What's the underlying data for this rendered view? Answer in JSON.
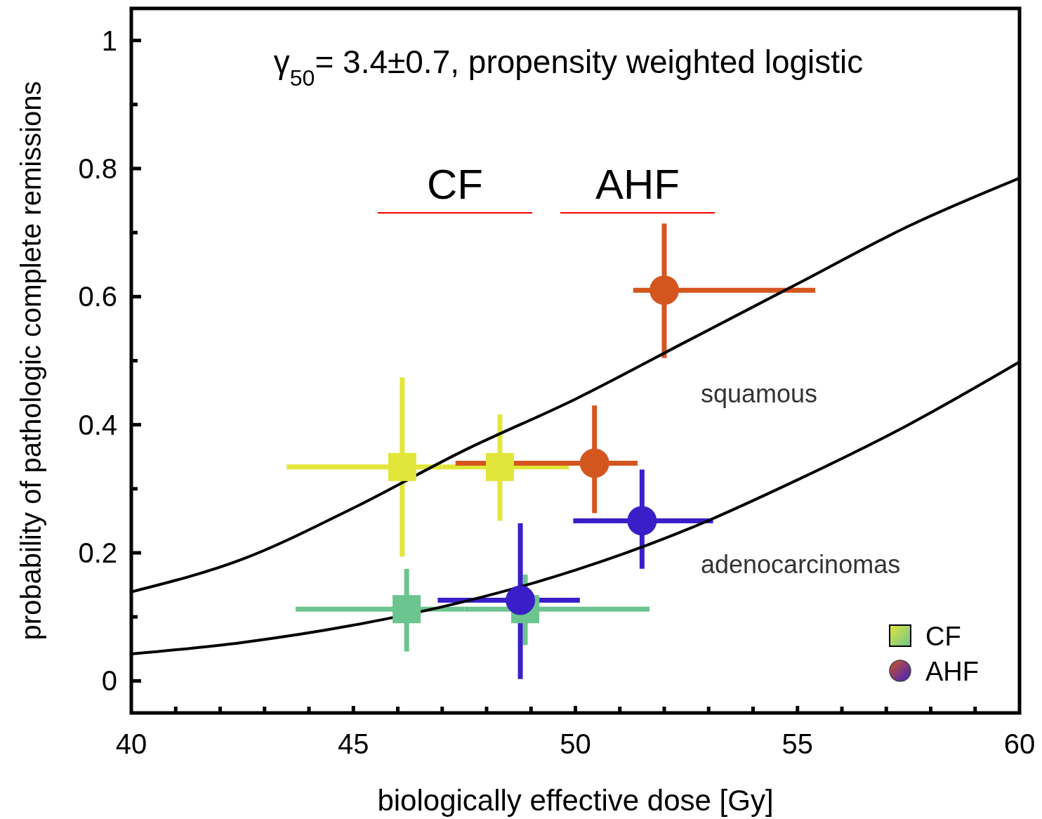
{
  "chart_data": {
    "type": "scatter",
    "title": "γ$_{50}$= 3.4±0.7, propensity weighted logistic",
    "xlabel": "biologically effective dose [Gy]",
    "ylabel": "probability of pathologic complete remissions",
    "xlim": [
      40,
      60
    ],
    "ylim": [
      -0.05,
      1.05
    ],
    "xticks": [
      40,
      {
        "value": 41,
        "label": null
      },
      {
        "value": 42,
        "label": null
      },
      {
        "value": 43,
        "label": null
      },
      {
        "value": 44,
        "label": null
      },
      45,
      {
        "value": 46,
        "label": null
      },
      {
        "value": 47,
        "label": null
      },
      {
        "value": 48,
        "label": null
      },
      {
        "value": 49,
        "label": null
      },
      50,
      {
        "value": 51,
        "label": null
      },
      {
        "value": 52,
        "label": null
      },
      {
        "value": 53,
        "label": null
      },
      {
        "value": 54,
        "label": null
      },
      55,
      {
        "value": 56,
        "label": null
      },
      {
        "value": 57,
        "label": null
      },
      {
        "value": 58,
        "label": null
      },
      {
        "value": 59,
        "label": null
      },
      60
    ],
    "yticks": [
      0,
      {
        "value": 0.1,
        "label": null
      },
      0.2,
      {
        "value": 0.3,
        "label": null
      },
      0.4,
      {
        "value": 0.5,
        "label": null
      },
      0.6,
      {
        "value": 0.7,
        "label": null
      },
      0.8,
      {
        "value": 0.9,
        "label": null
      },
      1
    ],
    "grid": false,
    "legend": "bottom right",
    "series": [
      {
        "type": "line",
        "color": "#000000",
        "x": [
          40,
          42.5,
          45,
          47.5,
          50,
          52.5,
          55,
          57.5,
          60
        ],
        "values": [
          0.139,
          0.19,
          0.27,
          0.36,
          0.44,
          0.53,
          0.62,
          0.71,
          0.785
        ]
      },
      {
        "type": "line",
        "color": "#000000",
        "x": [
          40,
          42.5,
          45,
          47.5,
          50,
          52.5,
          55,
          57.5,
          60
        ],
        "values": [
          0.042,
          0.06,
          0.087,
          0.124,
          0.173,
          0.236,
          0.314,
          0.4,
          0.498
        ]
      },
      {
        "name": "CF",
        "marker": "square",
        "color": "#e2e63a",
        "x": [
          46.1,
          48.3
        ],
        "values": [
          0.334,
          0.334
        ],
        "errors": [
          [
            0.194,
            0.474
          ],
          [
            0.25,
            0.416
          ]
        ],
        "xerrors": [
          [
            43.5,
            47.0
          ],
          [
            47.0,
            49.85
          ]
        ]
      },
      {
        "marker": "square",
        "color": "#6cc48e",
        "x": [
          46.2,
          48.87
        ],
        "values": [
          0.112,
          0.112
        ],
        "errors": [
          [
            0.046,
            0.175
          ],
          [
            0.056,
            0.166
          ]
        ],
        "xerrors": [
          [
            43.7,
            47.5
          ],
          [
            47.5,
            51.67
          ]
        ]
      },
      {
        "name": "AHF",
        "marker": "circle",
        "color": "#d4561f",
        "x": [
          52.0,
          50.43
        ],
        "values": [
          0.61,
          0.34
        ],
        "errors": [
          [
            0.504,
            0.714
          ],
          [
            0.262,
            0.43
          ]
        ],
        "xerrors": [
          [
            51.3,
            55.4
          ],
          [
            47.3,
            51.4
          ]
        ]
      },
      {
        "marker": "circle",
        "color": "#3a1fc8",
        "x": [
          51.5,
          48.76
        ],
        "values": [
          0.25,
          0.126
        ],
        "errors": [
          [
            0.175,
            0.33
          ],
          [
            0.003,
            0.246
          ]
        ],
        "xerrors": [
          [
            49.95,
            53.1
          ],
          [
            46.9,
            50.1
          ]
        ]
      }
    ],
    "annotations": [
      "CF",
      "AHF",
      "squamous",
      "adenocarcinomas"
    ]
  }
}
